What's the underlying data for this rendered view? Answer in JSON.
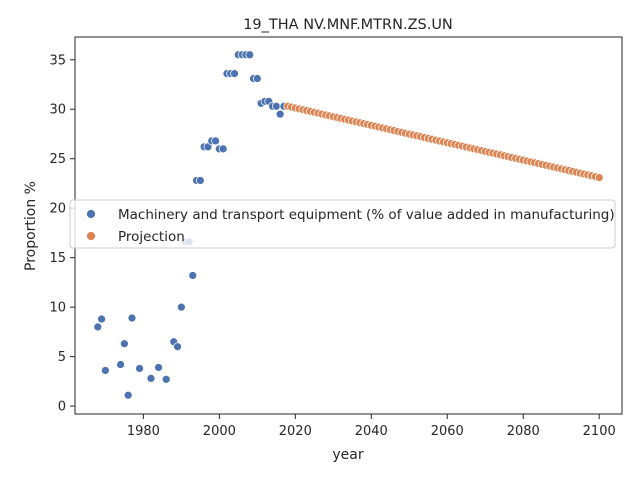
{
  "chart_data": {
    "type": "scatter",
    "title": "19_THA NV.MNF.MTRN.ZS.UN",
    "xlabel": "year",
    "ylabel": "Proportion %",
    "xlim": [
      1962,
      2106
    ],
    "ylim": [
      -0.8,
      37.3
    ],
    "xticks": [
      1980,
      2000,
      2020,
      2040,
      2060,
      2080,
      2100
    ],
    "yticks": [
      0,
      5,
      10,
      15,
      20,
      25,
      30,
      35
    ],
    "grid": false,
    "legend_position": "center-left",
    "series": [
      {
        "name": "Machinery and transport equipment (% of value added in manufacturing)",
        "color": "#4c72b0",
        "points": [
          [
            1968,
            8.0
          ],
          [
            1969,
            8.8
          ],
          [
            1970,
            3.6
          ],
          [
            1974,
            4.2
          ],
          [
            1975,
            6.3
          ],
          [
            1976,
            1.1
          ],
          [
            1977,
            8.9
          ],
          [
            1979,
            3.8
          ],
          [
            1982,
            2.8
          ],
          [
            1984,
            3.9
          ],
          [
            1986,
            2.7
          ],
          [
            1988,
            6.5
          ],
          [
            1989,
            6.0
          ],
          [
            1990,
            10.0
          ],
          [
            1991,
            16.6
          ],
          [
            1992,
            16.6
          ],
          [
            1993,
            13.2
          ],
          [
            1994,
            22.8
          ],
          [
            1995,
            22.8
          ],
          [
            1996,
            26.2
          ],
          [
            1997,
            26.2
          ],
          [
            1998,
            26.8
          ],
          [
            1999,
            26.8
          ],
          [
            2000,
            26.0
          ],
          [
            2001,
            26.0
          ],
          [
            2002,
            33.6
          ],
          [
            2003,
            33.6
          ],
          [
            2004,
            33.6
          ],
          [
            2005,
            35.5
          ],
          [
            2006,
            35.5
          ],
          [
            2007,
            35.5
          ],
          [
            2008,
            35.5
          ],
          [
            2009,
            33.1
          ],
          [
            2010,
            33.1
          ],
          [
            2011,
            30.6
          ],
          [
            2012,
            30.8
          ],
          [
            2013,
            30.8
          ],
          [
            2014,
            30.3
          ],
          [
            2015,
            30.3
          ],
          [
            2016,
            29.5
          ],
          [
            2017,
            30.3
          ]
        ]
      },
      {
        "name": "Projection",
        "color": "#dd8452",
        "x_start": 2018,
        "x_end": 2100,
        "y_start": 30.3,
        "y_end": 23.1
      }
    ]
  }
}
